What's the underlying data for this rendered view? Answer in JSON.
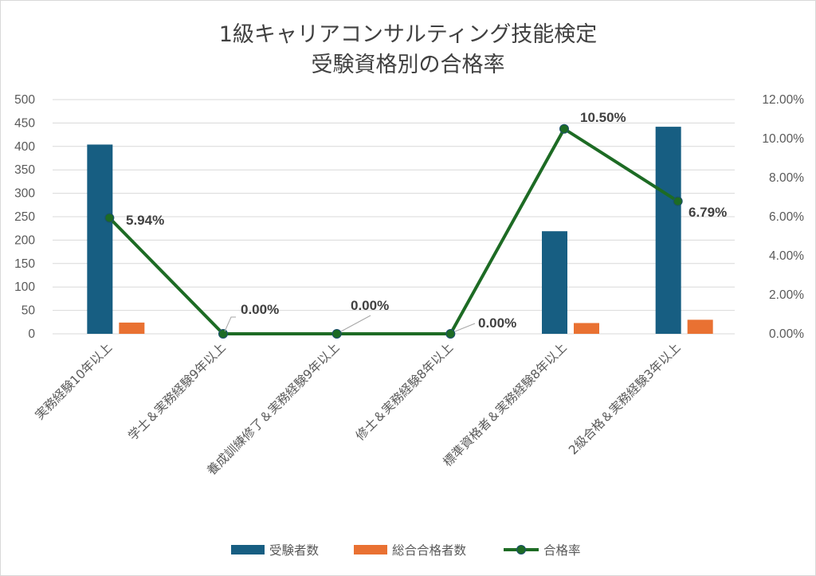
{
  "chart_data": {
    "type": "bar",
    "title": [
      "1級キャリアコンサルティング技能検定",
      "受験資格別の合格率"
    ],
    "categories": [
      "実務経験10年以上",
      "学士＆実務経験9年以上",
      "養成訓練修了＆実務経験9年以上",
      "修士＆実務経験8年以上",
      "標準資格者＆実務経験8年以上",
      "2級合格＆実務経験3年以上"
    ],
    "series": [
      {
        "name": "受験者数",
        "type": "bar",
        "axis": "left",
        "color": "#175e82",
        "values": [
          404,
          0,
          0,
          0,
          219,
          442
        ]
      },
      {
        "name": "総合合格者数",
        "type": "bar",
        "axis": "left",
        "color": "#e97132",
        "values": [
          24,
          0,
          0,
          0,
          23,
          30
        ]
      },
      {
        "name": "合格率",
        "type": "line",
        "axis": "right",
        "color": "#1d6b24",
        "values": [
          5.94,
          0.0,
          0.0,
          0.0,
          10.5,
          6.79
        ],
        "labels": [
          "5.94%",
          "0.00%",
          "0.00%",
          "0.00%",
          "10.50%",
          "6.79%"
        ]
      }
    ],
    "y_left": {
      "min": 0,
      "max": 500,
      "step": 50,
      "ticks": [
        "0",
        "50",
        "100",
        "150",
        "200",
        "250",
        "300",
        "350",
        "400",
        "450",
        "500"
      ]
    },
    "y_right": {
      "min": 0,
      "max": 12,
      "step": 2,
      "ticks": [
        "0.00%",
        "2.00%",
        "4.00%",
        "6.00%",
        "8.00%",
        "10.00%",
        "12.00%"
      ]
    },
    "grid": true,
    "legend_position": "bottom"
  }
}
